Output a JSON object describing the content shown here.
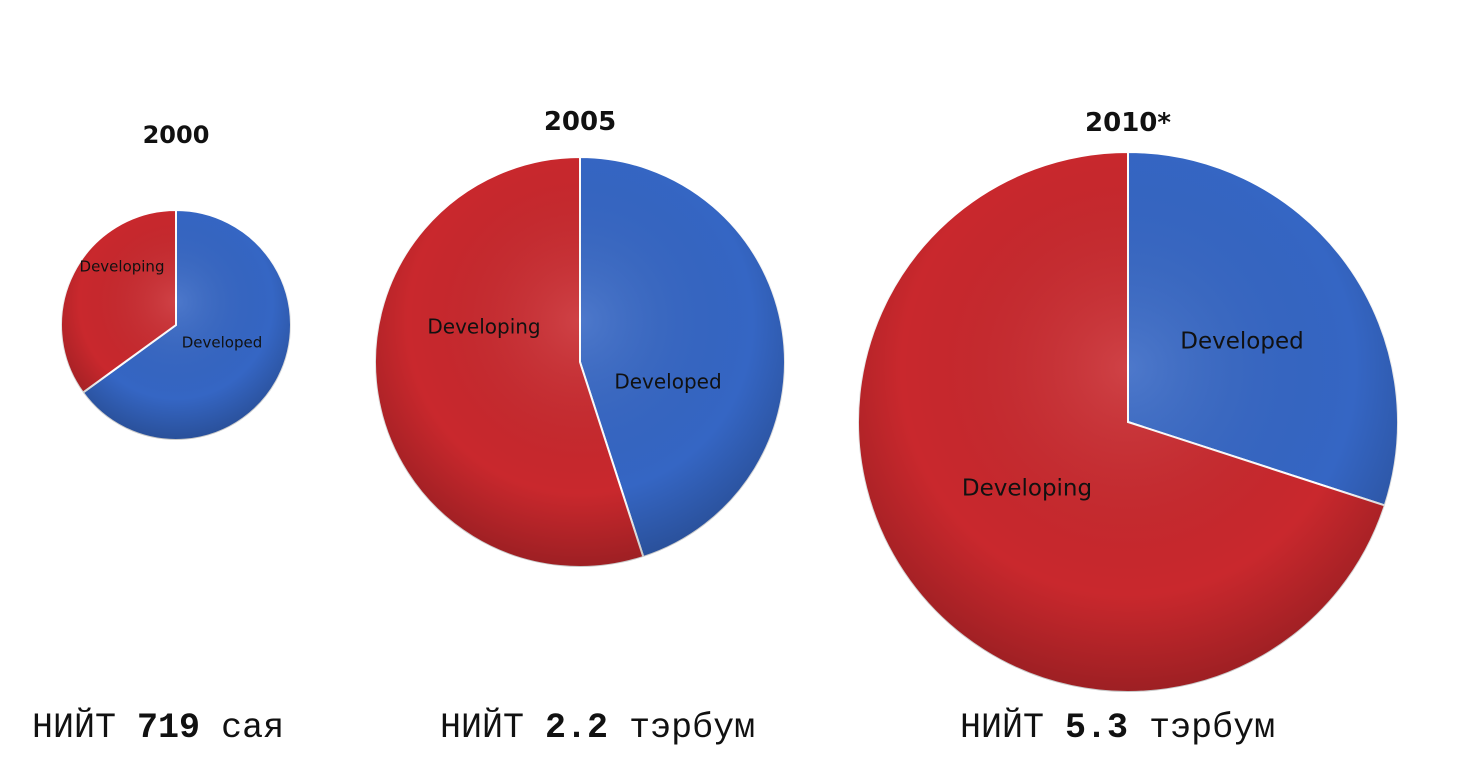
{
  "chart_data": [
    {
      "type": "pie",
      "title": "2000",
      "slices": [
        {
          "label": "Developed",
          "value": 0.65,
          "color": "#3566c4"
        },
        {
          "label": "Developing",
          "value": 0.35,
          "color": "#c9282d"
        }
      ],
      "total": {
        "prefix": "НИЙТ",
        "value": "719",
        "unit": "сая"
      }
    },
    {
      "type": "pie",
      "title": "2005",
      "slices": [
        {
          "label": "Developed",
          "value": 0.45,
          "color": "#3566c4"
        },
        {
          "label": "Developing",
          "value": 0.55,
          "color": "#c9282d"
        }
      ],
      "total": {
        "prefix": "НИЙТ",
        "value": "2.2",
        "unit": "тэрбум"
      }
    },
    {
      "type": "pie",
      "title": "2010*",
      "slices": [
        {
          "label": "Developed",
          "value": 0.3,
          "color": "#3566c4"
        },
        {
          "label": "Developing",
          "value": 0.7,
          "color": "#c9282d"
        }
      ],
      "total": {
        "prefix": "НИЙТ",
        "value": "5.3",
        "unit": "тэрбум"
      }
    }
  ]
}
